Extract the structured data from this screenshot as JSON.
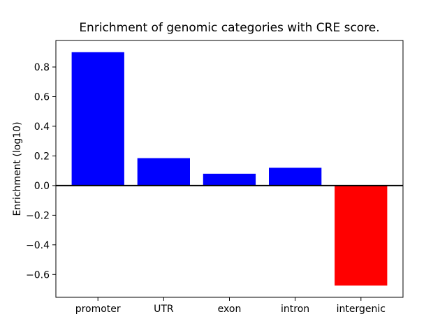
{
  "chart_data": {
    "type": "bar",
    "title": "Enrichment of genomic categories with CRE score.",
    "xlabel": "",
    "ylabel": "Enrichment (log10)",
    "categories": [
      "promoter",
      "UTR",
      "exon",
      "intron",
      "intergenic"
    ],
    "values": [
      0.9,
      0.185,
      0.08,
      0.12,
      -0.675
    ],
    "bar_colors": [
      "#0000ff",
      "#0000ff",
      "#0000ff",
      "#0000ff",
      "#ff0000"
    ],
    "positive_color": "#0000ff",
    "negative_color": "#ff0000",
    "y_ticks": [
      0.8,
      0.6,
      0.4,
      0.2,
      0.0,
      -0.2,
      -0.4,
      -0.6
    ],
    "y_tick_labels": [
      "0.8",
      "0.6",
      "0.4",
      "0.2",
      "0.0",
      "−0.2",
      "−0.4",
      "−0.6"
    ],
    "ylim": [
      -0.754,
      0.979
    ],
    "xlim": [
      -0.64,
      4.64
    ],
    "bar_width_fraction": 0.8,
    "zero_line": true,
    "grid": false,
    "legend": null,
    "background_color": "#ffffff",
    "spine_color": "#000000"
  }
}
